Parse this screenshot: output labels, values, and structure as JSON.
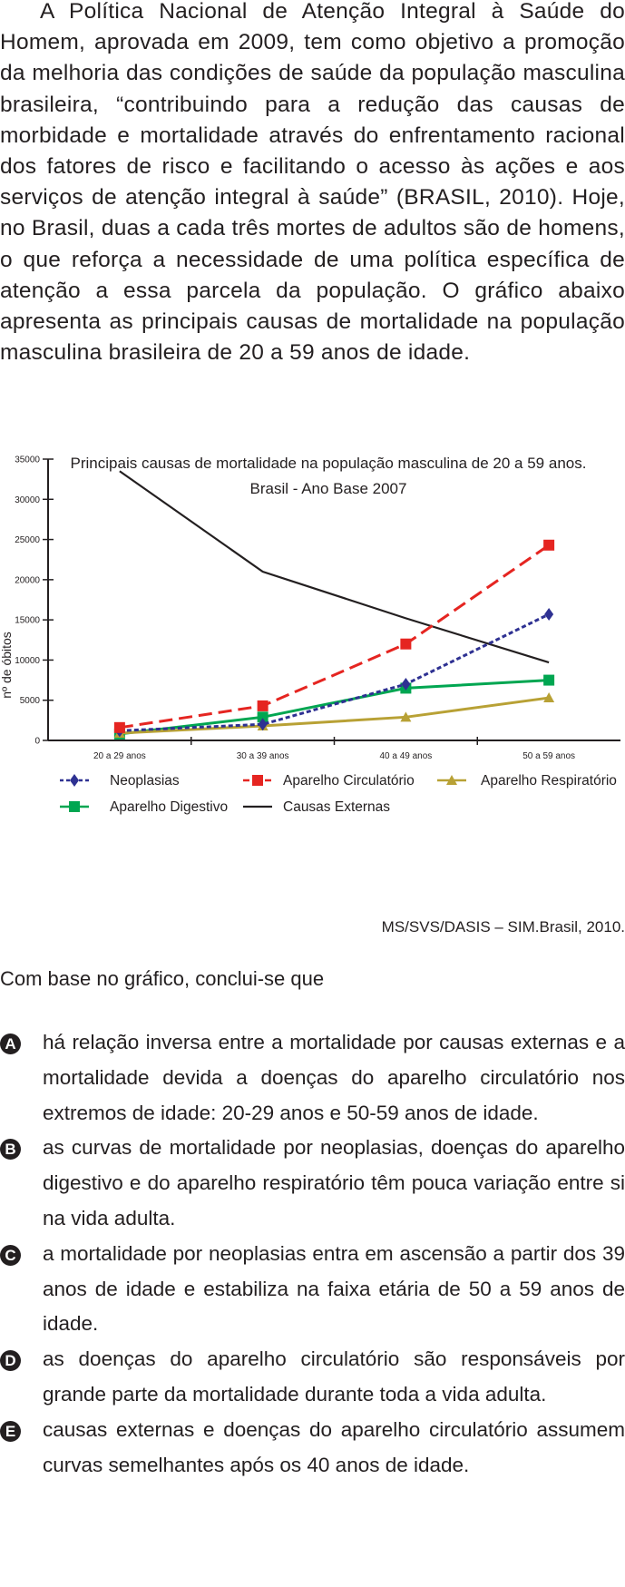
{
  "intro": "A Política Nacional de Atenção Integral à Saúde do Homem, aprovada em 2009, tem como objetivo a promoção da melhoria das condições de saúde da população masculina brasileira, “contribuindo para a redução das causas de morbidade e mortalidade através do enfrentamento racional dos fatores de risco e facilitando o acesso às ações e aos serviços de atenção integral à saúde” (BRASIL, 2010). Hoje, no Brasil, duas a cada três mortes de adultos são de homens, o que reforça a necessidade de uma política específica de atenção a essa parcela da população. O gráfico abaixo apresenta as principais causas de mortalidade na população masculina brasileira de 20 a 59 anos de idade.",
  "chart_data": {
    "type": "line",
    "title": "Principais causas de mortalidade na população masculina de 20 a 59 anos.",
    "subtitle": "Brasil - Ano Base 2007",
    "xlabel": "",
    "ylabel": "nº de óbitos",
    "categories": [
      "20 a 29 anos",
      "30 a 39 anos",
      "40 a 49 anos",
      "50 a 59 anos"
    ],
    "ylim": [
      0,
      35000
    ],
    "yticks": [
      0,
      5000,
      10000,
      15000,
      20000,
      25000,
      30000,
      35000
    ],
    "grid": false,
    "legend_position": "bottom",
    "series": [
      {
        "name": "Neoplasias",
        "values": [
          1200,
          2000,
          7000,
          15700
        ],
        "color": "#2e3192",
        "dash": "dotted",
        "marker": "diamond"
      },
      {
        "name": "Aparelho Circulatório",
        "values": [
          1600,
          4300,
          12000,
          24300
        ],
        "color": "#e52521",
        "dash": "dashed",
        "marker": "square"
      },
      {
        "name": "Aparelho Respiratório",
        "values": [
          900,
          1800,
          2900,
          5300
        ],
        "color": "#b8a135",
        "dash": "solid",
        "marker": "triangle"
      },
      {
        "name": "Aparelho Digestivo",
        "values": [
          800,
          2900,
          6500,
          7500
        ],
        "color": "#00a651",
        "dash": "solid",
        "marker": "square"
      },
      {
        "name": "Causas Externas",
        "values": [
          33500,
          21000,
          15200,
          9700
        ],
        "color": "#231f20",
        "dash": "solid",
        "marker": "none"
      }
    ]
  },
  "source": "MS/SVS/DASIS – SIM.Brasil, 2010.",
  "question": "Com base no gráfico, conclui-se que",
  "options": [
    {
      "letter": "A",
      "text": "há relação inversa entre a mortalidade por causas externas e a mortalidade devida a doenças do aparelho circulatório nos extremos de idade: 20-29 anos e 50-59 anos de idade."
    },
    {
      "letter": "B",
      "text": "as curvas de mortalidade por neoplasias, doenças do aparelho digestivo e do aparelho respiratório têm pouca variação entre si na vida adulta."
    },
    {
      "letter": "C",
      "text": "a mortalidade por neoplasias entra em ascensão a partir dos 39 anos de idade e estabiliza na faixa etária de 50 a 59 anos de idade."
    },
    {
      "letter": "D",
      "text": "as doenças do aparelho circulatório são responsáveis por grande parte da mortalidade durante toda a vida adulta."
    },
    {
      "letter": "E",
      "text": "causas externas e doenças do aparelho circulatório assumem curvas semelhantes após os 40 anos de idade."
    }
  ]
}
